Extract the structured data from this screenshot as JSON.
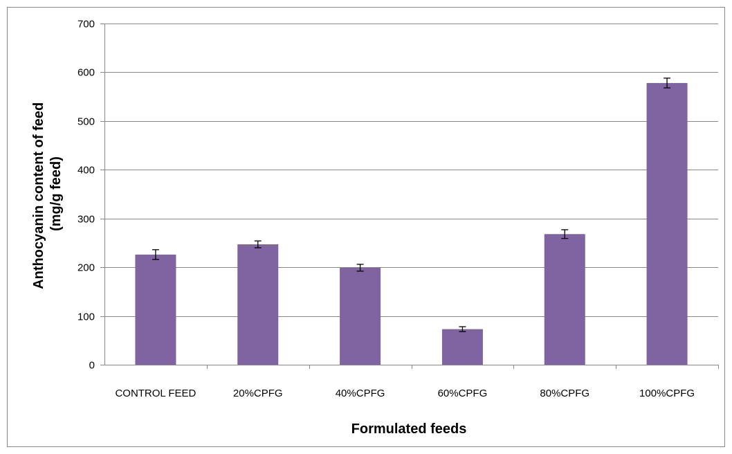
{
  "chart_data": {
    "type": "bar",
    "title": "",
    "xlabel": "Formulated feeds",
    "ylabel_line1": "Anthocyanin content  of feed",
    "ylabel_line2": "(mg/g feed)",
    "categories": [
      "CONTROL FEED",
      "20%CPFG",
      "40%CPFG",
      "60%CPFG",
      "80%CPFG",
      "100%CPFG"
    ],
    "series": [
      {
        "values": [
          226,
          247,
          199,
          73,
          268,
          578
        ],
        "error": [
          10,
          7,
          7,
          5,
          9,
          10
        ]
      }
    ],
    "ylim": [
      0,
      700
    ],
    "yticks": [
      0,
      100,
      200,
      300,
      400,
      500,
      600,
      700
    ],
    "grid": true,
    "legend": "none",
    "colors": {
      "bar": "#8064A2",
      "grid": "#878787",
      "axis": "#878787",
      "border": "#878787",
      "error_bar": "#000000"
    }
  }
}
